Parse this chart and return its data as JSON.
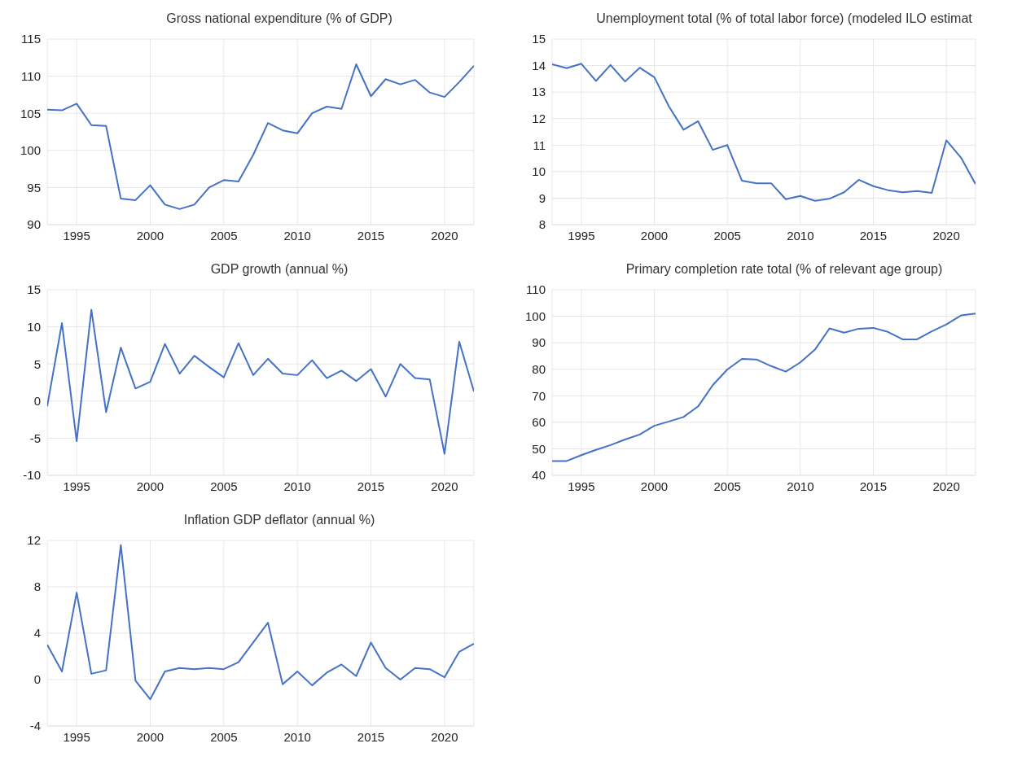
{
  "chart_data": [
    {
      "type": "line",
      "title": "Gross national expenditure (% of GDP)",
      "x": [
        1993,
        1994,
        1995,
        1996,
        1997,
        1998,
        1999,
        2000,
        2001,
        2002,
        2003,
        2004,
        2005,
        2006,
        2007,
        2008,
        2009,
        2010,
        2011,
        2012,
        2013,
        2014,
        2015,
        2016,
        2017,
        2018,
        2019,
        2020,
        2021,
        2022
      ],
      "series": [
        {
          "color": "#4472c4",
          "values": [
            105.5,
            105.4,
            106.3,
            103.4,
            103.3,
            93.5,
            93.3,
            95.3,
            92.7,
            92.1,
            92.7,
            95.0,
            96.0,
            95.8,
            99.4,
            103.7,
            102.7,
            102.3,
            105.0,
            105.9,
            105.6,
            111.6,
            107.3,
            109.6,
            108.9,
            109.5,
            107.8,
            107.2,
            109.2,
            111.4
          ]
        }
      ],
      "xlim": [
        1993,
        2022
      ],
      "xticks": [
        1995,
        2000,
        2005,
        2010,
        2015,
        2020
      ],
      "ylim": [
        90,
        115
      ],
      "yticks": [
        90,
        95,
        100,
        105,
        110,
        115
      ],
      "grid": true,
      "legend": false
    },
    {
      "type": "line",
      "title": "Unemployment total (% of total labor force) (modeled ILO estimat",
      "x": [
        1993,
        1994,
        1995,
        1996,
        1997,
        1998,
        1999,
        2000,
        2001,
        2002,
        2003,
        2004,
        2005,
        2006,
        2007,
        2008,
        2009,
        2010,
        2011,
        2012,
        2013,
        2014,
        2015,
        2016,
        2017,
        2018,
        2019,
        2020,
        2021,
        2022
      ],
      "series": [
        {
          "color": "#4472c4",
          "values": [
            14.05,
            13.9,
            14.07,
            13.42,
            14.02,
            13.4,
            13.92,
            13.56,
            12.46,
            11.58,
            11.9,
            10.82,
            11.0,
            9.66,
            9.56,
            9.56,
            8.96,
            9.08,
            8.9,
            8.98,
            9.22,
            9.69,
            9.45,
            9.3,
            9.22,
            9.27,
            9.2,
            11.18,
            10.53,
            9.53
          ]
        }
      ],
      "xlim": [
        1993,
        2022
      ],
      "xticks": [
        1995,
        2000,
        2005,
        2010,
        2015,
        2020
      ],
      "ylim": [
        8,
        15
      ],
      "yticks": [
        8,
        9,
        10,
        11,
        12,
        13,
        14,
        15
      ],
      "grid": true,
      "legend": false
    },
    {
      "type": "line",
      "title": "GDP growth (annual %)",
      "x": [
        1993,
        1994,
        1995,
        1996,
        1997,
        1998,
        1999,
        2000,
        2001,
        2002,
        2003,
        2004,
        2005,
        2006,
        2007,
        2008,
        2009,
        2010,
        2011,
        2012,
        2013,
        2014,
        2015,
        2016,
        2017,
        2018,
        2019,
        2020,
        2021,
        2022
      ],
      "series": [
        {
          "color": "#4472c4",
          "values": [
            -0.7,
            10.5,
            -5.4,
            12.3,
            -1.5,
            7.2,
            1.7,
            2.6,
            7.7,
            3.7,
            6.1,
            4.6,
            3.2,
            7.8,
            3.5,
            5.7,
            3.7,
            3.5,
            5.5,
            3.1,
            4.1,
            2.7,
            4.3,
            0.6,
            5.0,
            3.1,
            2.9,
            -7.1,
            8.0,
            1.3
          ]
        }
      ],
      "xlim": [
        1993,
        2022
      ],
      "xticks": [
        1995,
        2000,
        2005,
        2010,
        2015,
        2020
      ],
      "ylim": [
        -10,
        15
      ],
      "yticks": [
        -10,
        -5,
        0,
        5,
        10,
        15
      ],
      "grid": true,
      "legend": false
    },
    {
      "type": "line",
      "title": "Primary completion rate total (% of relevant age group)",
      "x": [
        1993,
        1994,
        1995,
        1996,
        1997,
        1998,
        1999,
        2000,
        2001,
        2002,
        2003,
        2004,
        2005,
        2006,
        2007,
        2008,
        2009,
        2010,
        2011,
        2012,
        2013,
        2014,
        2015,
        2016,
        2017,
        2018,
        2019,
        2020,
        2021,
        2022
      ],
      "series": [
        {
          "color": "#4472c4",
          "values": [
            45.4,
            45.4,
            47.6,
            49.6,
            51.4,
            53.5,
            55.4,
            58.7,
            60.3,
            62.0,
            66.0,
            74.0,
            79.9,
            83.9,
            83.7,
            81.2,
            79.1,
            82.6,
            87.4,
            95.4,
            93.8,
            95.3,
            95.6,
            94.1,
            91.3,
            91.3,
            94.3,
            96.9,
            100.3,
            101.0
          ]
        }
      ],
      "xlim": [
        1993,
        2022
      ],
      "xticks": [
        1995,
        2000,
        2005,
        2010,
        2015,
        2020
      ],
      "ylim": [
        40,
        110
      ],
      "yticks": [
        40,
        50,
        60,
        70,
        80,
        90,
        100,
        110
      ],
      "grid": true,
      "legend": false
    },
    {
      "type": "line",
      "title": "Inflation GDP deflator (annual %)",
      "x": [
        1993,
        1994,
        1995,
        1996,
        1997,
        1998,
        1999,
        2000,
        2001,
        2002,
        2003,
        2004,
        2005,
        2006,
        2007,
        2008,
        2009,
        2010,
        2011,
        2012,
        2013,
        2014,
        2015,
        2016,
        2017,
        2018,
        2019,
        2020,
        2021,
        2022
      ],
      "series": [
        {
          "color": "#4472c4",
          "values": [
            3.0,
            0.7,
            7.5,
            0.5,
            0.8,
            11.6,
            -0.1,
            -1.7,
            0.7,
            1.0,
            0.9,
            1.0,
            0.9,
            1.5,
            3.2,
            4.9,
            -0.4,
            0.7,
            -0.5,
            0.6,
            1.3,
            0.3,
            3.2,
            1.0,
            0.0,
            1.0,
            0.9,
            0.2,
            2.4,
            3.1
          ]
        }
      ],
      "xlim": [
        1993,
        2022
      ],
      "xticks": [
        1995,
        2000,
        2005,
        2010,
        2015,
        2020
      ],
      "ylim": [
        -4,
        12
      ],
      "yticks": [
        -4,
        0,
        4,
        8,
        12
      ],
      "grid": true,
      "legend": false
    }
  ]
}
